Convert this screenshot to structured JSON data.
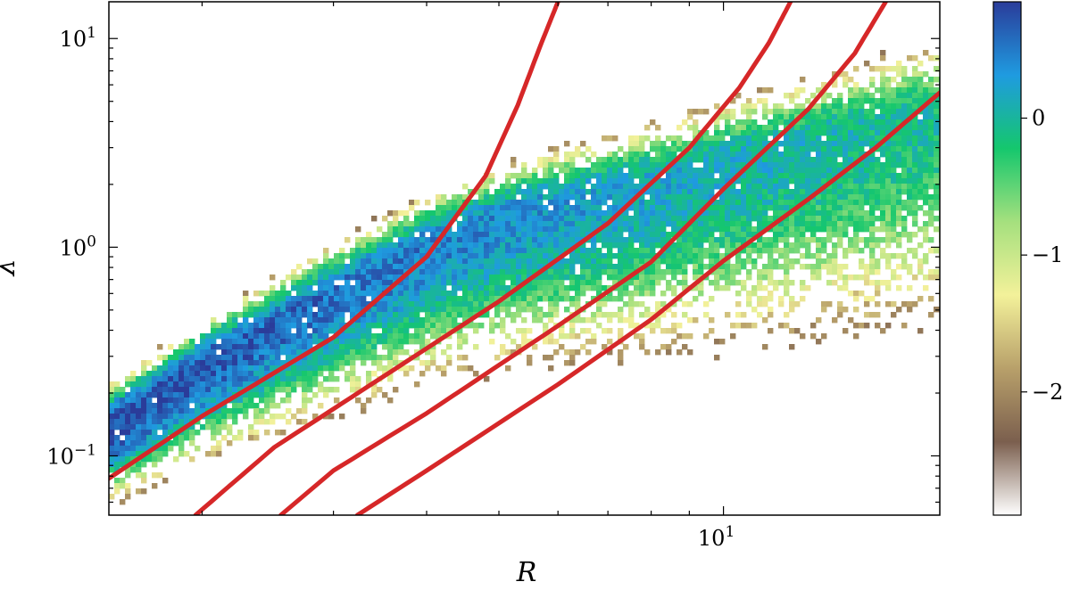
{
  "chart_data": {
    "type": "heatmap",
    "title": "",
    "xlabel": "R",
    "ylabel": "λ",
    "x_scale": "log",
    "y_scale": "log",
    "xlim": [
      1.5,
      19.5
    ],
    "ylim": [
      0.052,
      15
    ],
    "x_major_ticks": [
      {
        "value": 10,
        "base": "10",
        "exp": "1"
      }
    ],
    "y_major_ticks": [
      {
        "value": 0.1,
        "base": "10",
        "exp": "−1"
      },
      {
        "value": 1,
        "base": "10",
        "exp": "0"
      },
      {
        "value": 10,
        "base": "10",
        "exp": "1"
      }
    ],
    "grid": false,
    "colormap": "terrain",
    "colorbar": {
      "range": [
        -2.9,
        0.85
      ],
      "ticks": [
        {
          "value": 0,
          "label": "0"
        },
        {
          "value": -1,
          "label": "−1"
        },
        {
          "value": -2,
          "label": "−2"
        }
      ],
      "stops": [
        "#ffffff",
        "#7b5f4e",
        "#b8a06a",
        "#f3f19a",
        "#a5e07e",
        "#15c76d",
        "#1f9be0",
        "#2a3c9a"
      ]
    },
    "density_ridge": {
      "x": [
        1.6,
        2.0,
        2.5,
        3.0,
        4.0,
        5.0,
        6.0,
        8.0,
        10.0,
        13.0,
        17.0
      ],
      "y": [
        0.16,
        0.27,
        0.42,
        0.6,
        1.0,
        1.35,
        1.6,
        2.0,
        2.5,
        3.2,
        4.0
      ]
    },
    "series": [
      {
        "color": "#d62728",
        "x": [
          1.5,
          2.0,
          3.0,
          4.0,
          4.8,
          5.3,
          5.7,
          6.0
        ],
        "y": [
          0.078,
          0.155,
          0.37,
          0.9,
          2.2,
          4.8,
          9.5,
          15
        ]
      },
      {
        "color": "#d62728",
        "x": [
          1.96,
          2.5,
          3.5,
          5.0,
          7.0,
          9.0,
          10.5,
          11.5,
          12.3
        ],
        "y": [
          0.052,
          0.11,
          0.24,
          0.55,
          1.3,
          3.0,
          5.8,
          9.5,
          15
        ]
      },
      {
        "color": "#d62728",
        "x": [
          2.55,
          3.0,
          4.0,
          6.0,
          8.0,
          10.0,
          13.0,
          15.0,
          16.5
        ],
        "y": [
          0.052,
          0.085,
          0.16,
          0.42,
          0.85,
          1.9,
          4.6,
          8.5,
          15
        ]
      },
      {
        "color": "#d62728",
        "x": [
          3.23,
          4.0,
          6.0,
          8.0,
          10.0,
          13.0,
          16.0,
          19.5
        ],
        "y": [
          0.052,
          0.085,
          0.22,
          0.45,
          0.86,
          1.7,
          3.0,
          5.5
        ]
      }
    ]
  }
}
